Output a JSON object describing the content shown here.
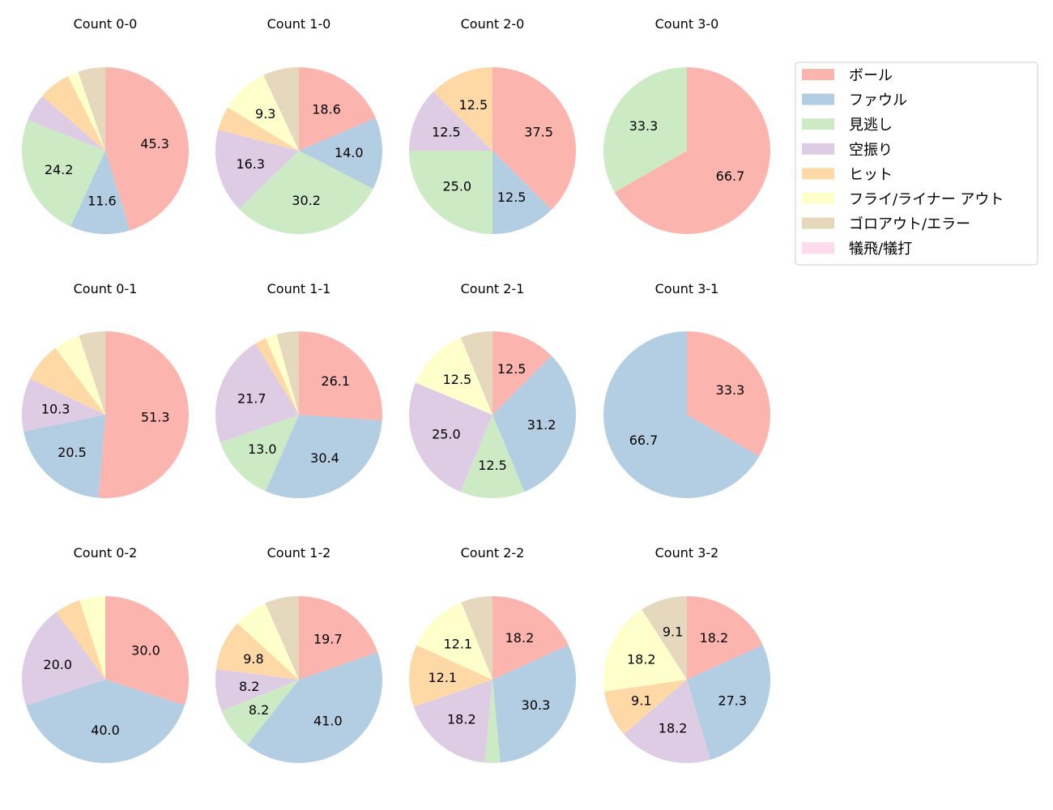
{
  "chart_data": {
    "type": "pie",
    "categories": [
      "ボール",
      "ファウル",
      "見逃し",
      "空振り",
      "ヒット",
      "フライ/ライナー アウト",
      "ゴロアウト/エラー",
      "犠飛/犠打"
    ],
    "colors": [
      "#fbb4ae",
      "#b3cde3",
      "#ccebc5",
      "#decbe4",
      "#fed9a6",
      "#ffffcc",
      "#e5d8bd",
      "#fddaec"
    ],
    "legend": "top-right",
    "label_threshold": 8,
    "charts": [
      {
        "title": "Count 0-0",
        "values": [
          45.3,
          11.6,
          24.2,
          5.3,
          6.3,
          2.1,
          5.3,
          0
        ]
      },
      {
        "title": "Count 1-0",
        "values": [
          18.6,
          14.0,
          30.2,
          16.3,
          4.7,
          9.3,
          7.0,
          0
        ]
      },
      {
        "title": "Count 2-0",
        "values": [
          37.5,
          12.5,
          25.0,
          12.5,
          12.5,
          0,
          0,
          0
        ]
      },
      {
        "title": "Count 3-0",
        "values": [
          66.7,
          0,
          33.3,
          0,
          0,
          0,
          0,
          0
        ]
      },
      {
        "title": "Count 0-1",
        "values": [
          51.3,
          20.5,
          0,
          10.3,
          7.7,
          5.1,
          5.1,
          0
        ]
      },
      {
        "title": "Count 1-1",
        "values": [
          26.1,
          30.4,
          13.0,
          21.7,
          2.2,
          2.2,
          4.3,
          0
        ]
      },
      {
        "title": "Count 2-1",
        "values": [
          12.5,
          31.2,
          12.5,
          25.0,
          0,
          12.5,
          6.2,
          0
        ]
      },
      {
        "title": "Count 3-1",
        "values": [
          33.3,
          66.7,
          0,
          0,
          0,
          0,
          0,
          0
        ]
      },
      {
        "title": "Count 0-2",
        "values": [
          30.0,
          40.0,
          0,
          20.0,
          5.0,
          5.0,
          0,
          0
        ]
      },
      {
        "title": "Count 1-2",
        "values": [
          19.7,
          41.0,
          8.2,
          8.2,
          9.8,
          6.6,
          6.6,
          0
        ]
      },
      {
        "title": "Count 2-2",
        "values": [
          18.2,
          30.3,
          3.0,
          18.2,
          12.1,
          12.1,
          6.1,
          0
        ]
      },
      {
        "title": "Count 3-2",
        "values": [
          18.2,
          27.3,
          0,
          18.2,
          9.1,
          18.2,
          9.1,
          0
        ]
      }
    ]
  }
}
